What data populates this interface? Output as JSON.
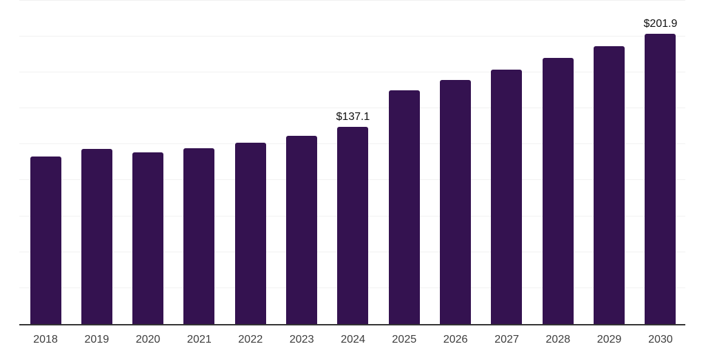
{
  "chart_data": {
    "type": "bar",
    "categories": [
      "2018",
      "2019",
      "2020",
      "2021",
      "2022",
      "2023",
      "2024",
      "2025",
      "2026",
      "2027",
      "2028",
      "2029",
      "2030"
    ],
    "values": [
      116.6,
      121.7,
      119.5,
      122.3,
      126.2,
      131.0,
      137.1,
      162.5,
      169.8,
      176.9,
      185.0,
      193.2,
      201.9
    ],
    "data_labels": [
      "",
      "",
      "",
      "",
      "",
      "",
      "$137.1",
      "",
      "",
      "",
      "",
      "",
      "$201.9"
    ],
    "title": "",
    "xlabel": "",
    "ylabel": "",
    "ylim": [
      0,
      225
    ],
    "grid_step": 25,
    "grid": true,
    "legend": false,
    "colors": {
      "bar": "#341250",
      "gridline": "#f1f1f1",
      "axis_line": "#333333",
      "tick_label": "#3d3d3d",
      "data_label": "#0f0f0f",
      "background": "#ffffff"
    }
  }
}
